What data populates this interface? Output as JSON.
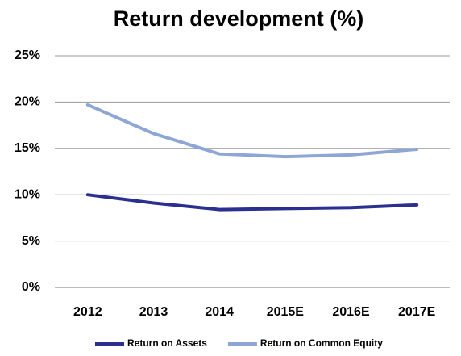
{
  "chart_data": {
    "type": "line",
    "title": "Return development (%)",
    "categories": [
      "2012",
      "2013",
      "2014",
      "2015E",
      "2016E",
      "2017E"
    ],
    "series": [
      {
        "name": "Return on Assets",
        "color": "#2b2f8f",
        "values": [
          10.0,
          9.1,
          8.4,
          8.5,
          8.6,
          8.9
        ]
      },
      {
        "name": "Return on Common Equity",
        "color": "#8ea6d6",
        "values": [
          19.7,
          16.6,
          14.4,
          14.1,
          14.3,
          14.9
        ]
      }
    ],
    "ylim": [
      0,
      25
    ],
    "yticks": [
      {
        "value": 0,
        "label": "0%"
      },
      {
        "value": 5,
        "label": "5%"
      },
      {
        "value": 10,
        "label": "10%"
      },
      {
        "value": 15,
        "label": "15%"
      },
      {
        "value": 20,
        "label": "20%"
      },
      {
        "value": 25,
        "label": "25%"
      }
    ],
    "grid": true,
    "legend": "bottom"
  }
}
